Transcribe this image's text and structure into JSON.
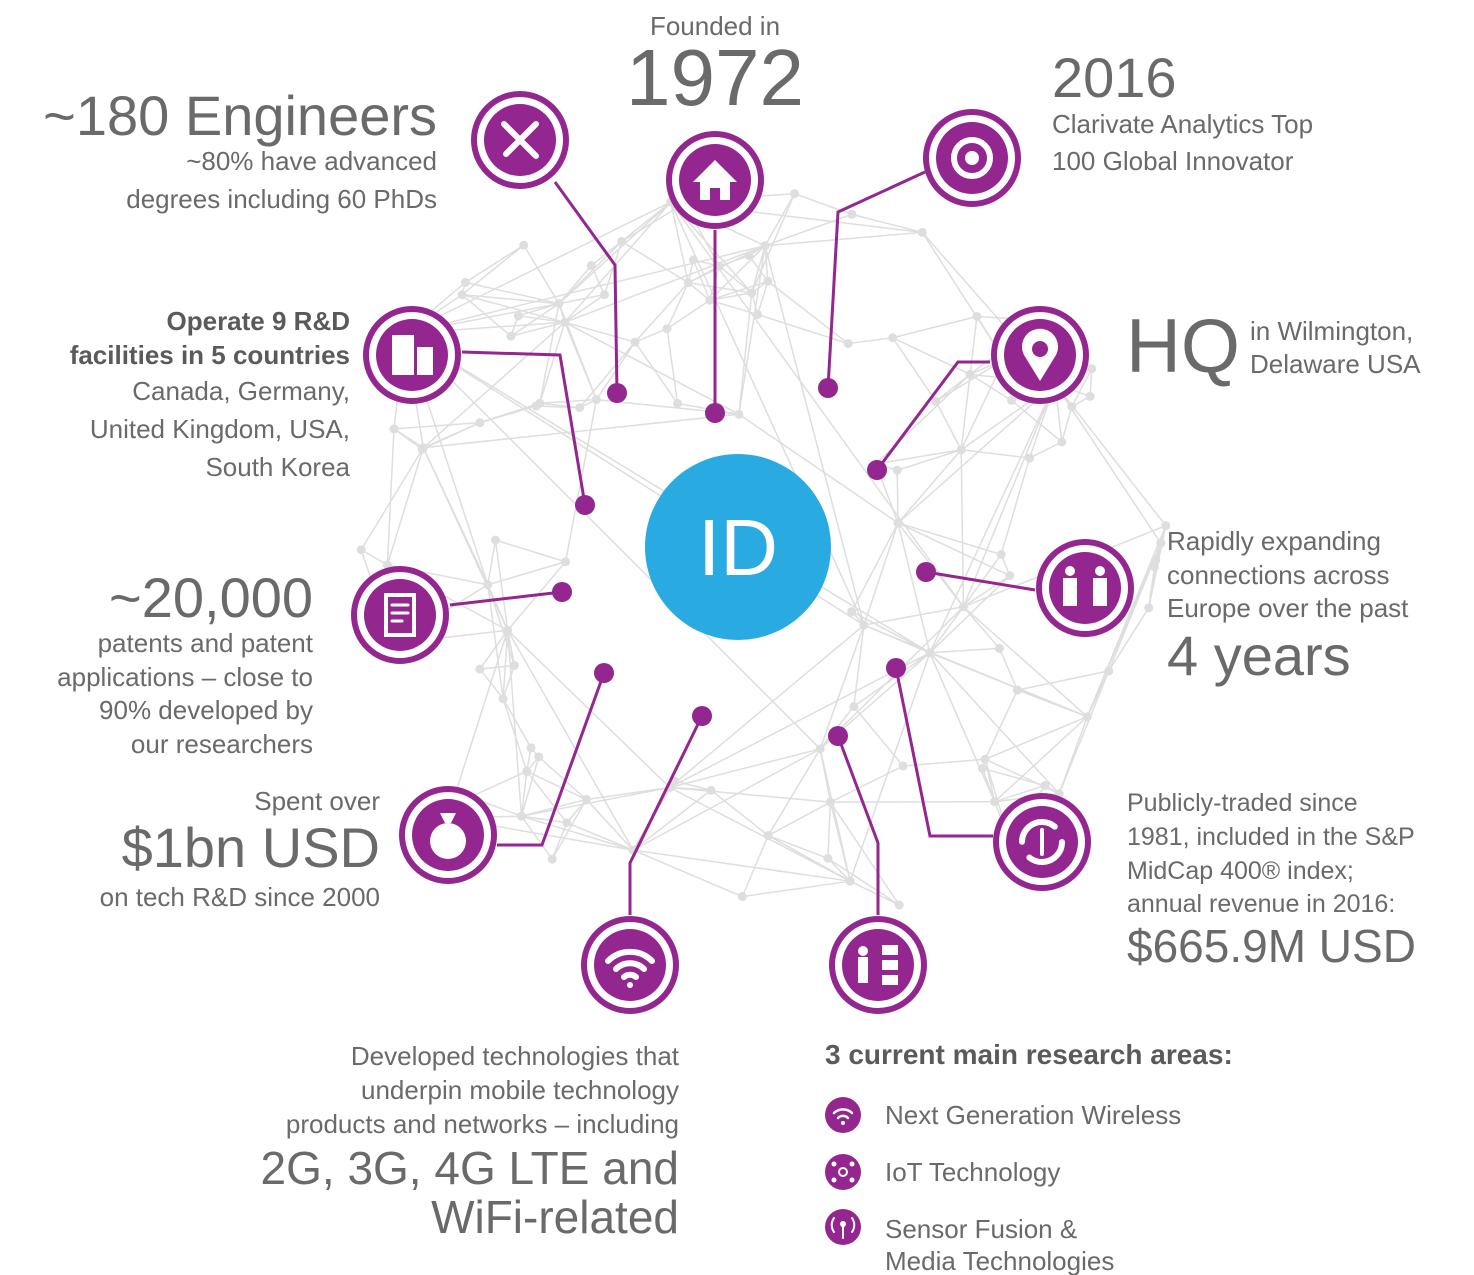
{
  "center": "ID",
  "engineers": {
    "headline": "~180 Engineers",
    "lines": [
      "~80% have advanced",
      "degrees including 60 PhDs"
    ]
  },
  "founded": {
    "label": "Founded in",
    "year": "1972"
  },
  "innovator": {
    "year": "2016",
    "lines": [
      "Clarivate Analytics Top",
      "100 Global Innovator"
    ]
  },
  "facilities": {
    "bold": [
      "Operate 9 R&D",
      "facilities in 5 countries"
    ],
    "lines": [
      "Canada, Germany,",
      "United Kingdom, USA,",
      "South Korea"
    ]
  },
  "hq": {
    "headline": "HQ",
    "lines": [
      "in Wilmington,",
      "Delaware USA"
    ]
  },
  "patents": {
    "headline": "~20,000",
    "lines": [
      "patents and patent",
      "applications – close to",
      "90% developed by",
      "our researchers"
    ]
  },
  "europe": {
    "lines": [
      "Rapidly expanding",
      "connections across",
      "Europe over the past"
    ],
    "headline": "4 years"
  },
  "spend": {
    "label": "Spent over",
    "headline": "$1bn USD",
    "footer": "on tech R&D since 2000"
  },
  "public": {
    "lines": [
      "Publicly-traded since",
      "1981, included in the S&P",
      "MidCap 400® index;",
      "annual revenue in 2016:"
    ],
    "headline": "$665.9M USD"
  },
  "mobile": {
    "lines": [
      "Developed technologies that",
      "underpin mobile technology",
      "products and networks – including"
    ],
    "headlines": [
      "2G, 3G, 4G LTE and",
      "WiFi-related"
    ]
  },
  "research": {
    "title": "3 current main research areas:",
    "items": [
      "Next Generation Wireless",
      "IoT Technology",
      "Sensor Fusion &",
      "Media Technologies"
    ]
  }
}
